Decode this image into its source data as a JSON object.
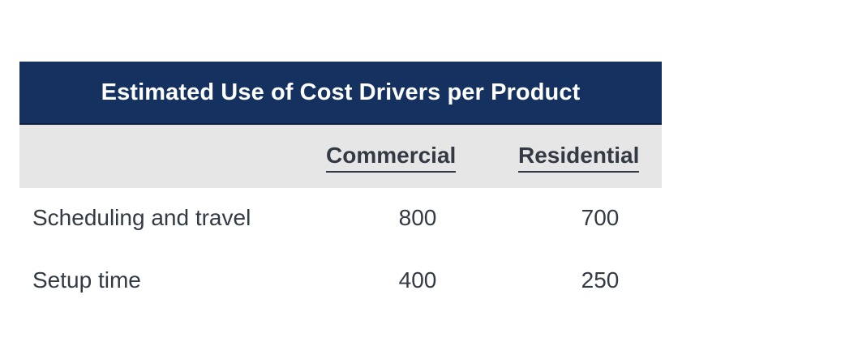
{
  "table": {
    "title": "Estimated Use of Cost Drivers per Product",
    "columns": [
      "Commercial",
      "Residential"
    ],
    "rows": [
      {
        "label": "Scheduling and travel",
        "values": [
          "800",
          "700"
        ]
      },
      {
        "label": "Setup time",
        "values": [
          "400",
          "250"
        ]
      }
    ]
  },
  "colors": {
    "title_bg": "#14315f",
    "header_bg": "#e6e6e6",
    "text": "#333a44"
  }
}
